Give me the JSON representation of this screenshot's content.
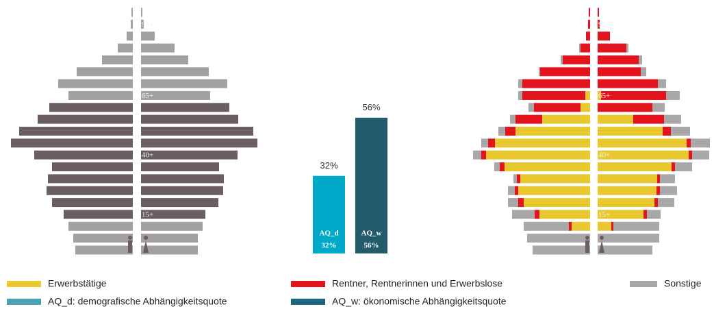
{
  "chart_data": [
    {
      "type": "pyramid",
      "categories": [
        null,
        "95+",
        null,
        null,
        null,
        null,
        null,
        "65+",
        null,
        null,
        null,
        null,
        "40+",
        null,
        null,
        null,
        null,
        "15+",
        null,
        null,
        null
      ],
      "male": [
        2,
        3,
        9,
        22,
        45,
        82,
        109,
        94,
        122,
        139,
        166,
        178,
        144,
        118,
        124,
        126,
        118,
        101,
        94,
        87,
        84
      ],
      "female": [
        2,
        4,
        20,
        49,
        69,
        99,
        126,
        101,
        129,
        142,
        164,
        170,
        141,
        114,
        121,
        120,
        113,
        94,
        90,
        83,
        83
      ],
      "colors": [
        "#a3a0a1",
        "#a3a0a1",
        "#a3a0a1",
        "#a3a0a1",
        "#a3a0a1",
        "#a3a0a1",
        "#a3a0a1",
        "#a3a0a1",
        "#6a5e60",
        "#6a5e60",
        "#6a5e60",
        "#6a5e60",
        "#6a5e60",
        "#6a5e60",
        "#6a5e60",
        "#6a5e60",
        "#6a5e60",
        "#6a5e60",
        "#a3a0a1",
        "#a3a0a1",
        "#a3a0a1"
      ]
    },
    {
      "type": "bar",
      "categories": [
        "AQ_d",
        "AQ_w"
      ],
      "values": [
        32,
        56
      ],
      "value_labels": [
        "32%",
        "56%"
      ],
      "colors": [
        "#00a9c8",
        "#235b6b"
      ],
      "legend": {
        "labels": [
          "AQ_d: demografische Abhängigkeitsquote",
          "AQ_w: ökonomische Abhängigkeitsquote"
        ],
        "colors": [
          "#4ba3b1",
          "#1f6680"
        ]
      }
    },
    {
      "type": "stacked_pyramid",
      "categories": [
        null,
        "95+",
        null,
        null,
        null,
        null,
        null,
        "65+",
        null,
        null,
        null,
        null,
        "40+",
        null,
        null,
        null,
        null,
        "15+",
        null,
        null,
        null
      ],
      "series": [
        {
          "name": "Erwerbstätige",
          "color": "#e8c82e",
          "male": [
            0,
            0,
            0,
            0,
            0,
            0,
            0,
            7,
            14,
            70,
            109,
            139,
            152,
            125,
            102,
            105,
            97,
            74,
            27,
            0,
            0
          ],
          "female": [
            0,
            0,
            0,
            0,
            0,
            0,
            0,
            5,
            0,
            52,
            95,
            130,
            133,
            108,
            87,
            86,
            83,
            67,
            20,
            0,
            0
          ]
        },
        {
          "name": "Rentner, Rentnerinnen und Erwerbslose",
          "color": "#e3141d",
          "male": [
            2,
            3,
            6,
            14,
            40,
            73,
            99,
            92,
            68,
            39,
            15,
            10,
            7,
            7,
            5,
            5,
            8,
            7,
            4,
            0,
            0
          ],
          "female": [
            2,
            3,
            18,
            42,
            60,
            63,
            88,
            95,
            80,
            45,
            12,
            6,
            5,
            5,
            4,
            5,
            5,
            5,
            3,
            0,
            0
          ]
        },
        {
          "name": "Sonstige",
          "color": "#aaa7a8",
          "male": [
            0,
            0,
            0,
            2,
            3,
            2,
            6,
            6,
            8,
            8,
            10,
            10,
            12,
            8,
            5,
            10,
            15,
            33,
            66,
            92,
            84
          ],
          "female": [
            0,
            0,
            0,
            3,
            5,
            8,
            12,
            20,
            18,
            25,
            28,
            28,
            25,
            25,
            22,
            25,
            24,
            20,
            67,
            90,
            80
          ]
        }
      ]
    }
  ]
}
